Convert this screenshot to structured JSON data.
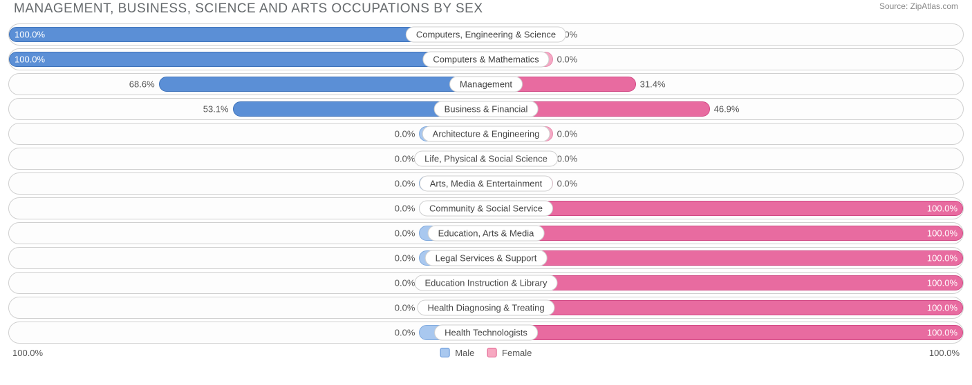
{
  "title": "MANAGEMENT, BUSINESS, SCIENCE AND ARTS OCCUPATIONS BY SEX",
  "source_label": "Source:",
  "source_value": "ZipAtlas.com",
  "axis": {
    "left": "100.0%",
    "right": "100.0%"
  },
  "legend": {
    "male": {
      "label": "Male",
      "fill": "#a9c8ef",
      "border": "#5a8fd6"
    },
    "female": {
      "label": "Female",
      "fill": "#f7a8c1",
      "border": "#e05a8a"
    }
  },
  "colors": {
    "male_fill": "#5b8fd6",
    "male_border": "#3f73ba",
    "male_fill_light": "#a9c8ef",
    "male_border_light": "#7fa9dd",
    "female_fill": "#e86ba0",
    "female_border": "#d14a85",
    "female_fill_light": "#f5a8c4",
    "female_border_light": "#e88db0",
    "row_border": "#d0d0d0",
    "background": "#ffffff",
    "text": "#555555",
    "title_color": "#666a6d"
  },
  "chart": {
    "type": "diverging-bar",
    "default_bar_pct": 14,
    "rows": [
      {
        "category": "Computers, Engineering & Science",
        "male": 100.0,
        "female": 0.0,
        "male_strong": true,
        "female_strong": false
      },
      {
        "category": "Computers & Mathematics",
        "male": 100.0,
        "female": 0.0,
        "male_strong": true,
        "female_strong": false
      },
      {
        "category": "Management",
        "male": 68.6,
        "female": 31.4,
        "male_strong": true,
        "female_strong": true
      },
      {
        "category": "Business & Financial",
        "male": 53.1,
        "female": 46.9,
        "male_strong": true,
        "female_strong": true
      },
      {
        "category": "Architecture & Engineering",
        "male": 0.0,
        "female": 0.0,
        "male_strong": false,
        "female_strong": false
      },
      {
        "category": "Life, Physical & Social Science",
        "male": 0.0,
        "female": 0.0,
        "male_strong": false,
        "female_strong": false
      },
      {
        "category": "Arts, Media & Entertainment",
        "male": 0.0,
        "female": 0.0,
        "male_strong": false,
        "female_strong": false
      },
      {
        "category": "Community & Social Service",
        "male": 0.0,
        "female": 100.0,
        "male_strong": false,
        "female_strong": true
      },
      {
        "category": "Education, Arts & Media",
        "male": 0.0,
        "female": 100.0,
        "male_strong": false,
        "female_strong": true
      },
      {
        "category": "Legal Services & Support",
        "male": 0.0,
        "female": 100.0,
        "male_strong": false,
        "female_strong": true
      },
      {
        "category": "Education Instruction & Library",
        "male": 0.0,
        "female": 100.0,
        "male_strong": false,
        "female_strong": true
      },
      {
        "category": "Health Diagnosing & Treating",
        "male": 0.0,
        "female": 100.0,
        "male_strong": false,
        "female_strong": true
      },
      {
        "category": "Health Technologists",
        "male": 0.0,
        "female": 100.0,
        "male_strong": false,
        "female_strong": true
      }
    ]
  }
}
